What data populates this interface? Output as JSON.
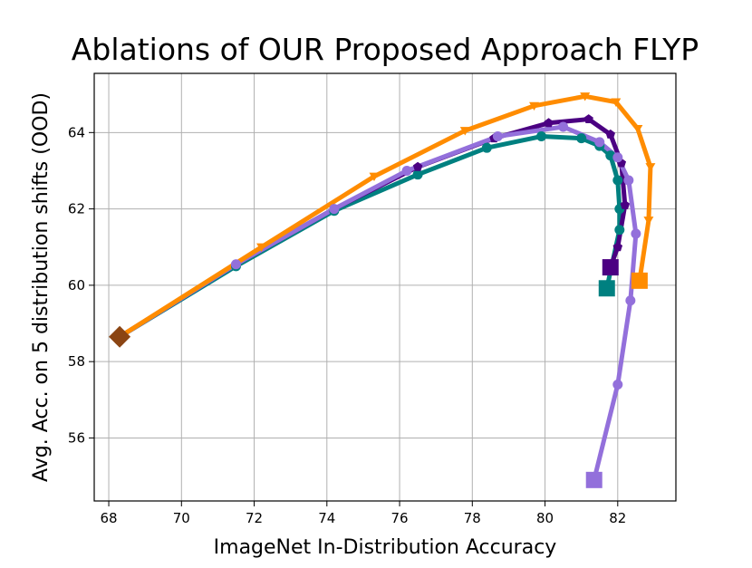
{
  "chart_data": {
    "type": "line",
    "title": "Ablations of OUR Proposed Approach FLYP",
    "xlabel": "ImageNet In-Distribution Accuracy",
    "ylabel": "Avg. Acc. on 5 distribution shifts (OOD)",
    "xlim": [
      67.6,
      83.6
    ],
    "ylim": [
      54.35,
      65.55
    ],
    "xticks": [
      68,
      70,
      72,
      74,
      76,
      78,
      80,
      82
    ],
    "yticks": [
      56,
      58,
      60,
      62,
      64
    ],
    "grid": true,
    "legend": "none",
    "start_point": {
      "x": 68.3,
      "y": 58.65,
      "marker": "diamond",
      "color": "#8b4513"
    },
    "series": [
      {
        "color": "#008080",
        "marker": "circle",
        "end_marker": "square",
        "x": [
          68.3,
          71.5,
          74.2,
          76.5,
          78.4,
          79.9,
          81.0,
          81.5,
          81.8,
          82.0,
          82.05,
          82.05,
          81.7
        ],
        "y": [
          58.65,
          60.5,
          61.95,
          62.9,
          63.6,
          63.9,
          63.85,
          63.65,
          63.4,
          62.75,
          62.0,
          61.45,
          59.92
        ]
      },
      {
        "color": "#4b0082",
        "marker": "pentagon",
        "end_marker": "square",
        "x": [
          68.3,
          71.5,
          74.2,
          76.5,
          78.6,
          80.1,
          81.2,
          81.8,
          82.1,
          82.2,
          82.0,
          81.8
        ],
        "y": [
          58.65,
          60.55,
          62.0,
          63.1,
          63.85,
          64.25,
          64.35,
          63.95,
          63.2,
          62.1,
          61.0,
          60.47
        ]
      },
      {
        "color": "#9370db",
        "marker": "circle",
        "end_marker": "square",
        "x": [
          68.3,
          71.5,
          74.2,
          76.2,
          78.7,
          80.5,
          81.5,
          82.0,
          82.3,
          82.5,
          82.35,
          82.0,
          81.35
        ],
        "y": [
          58.65,
          60.55,
          62.0,
          63.0,
          63.9,
          64.15,
          63.75,
          63.35,
          62.75,
          61.35,
          59.6,
          57.4,
          54.9
        ]
      },
      {
        "color": "#ff8c00",
        "marker": "triangle-down",
        "end_marker": "square",
        "x": [
          68.3,
          72.2,
          75.3,
          77.8,
          79.7,
          81.1,
          81.95,
          82.55,
          82.9,
          82.85,
          82.6
        ],
        "y": [
          58.65,
          61.0,
          62.85,
          64.05,
          64.7,
          64.95,
          64.8,
          64.1,
          63.1,
          61.7,
          60.12
        ]
      }
    ]
  }
}
